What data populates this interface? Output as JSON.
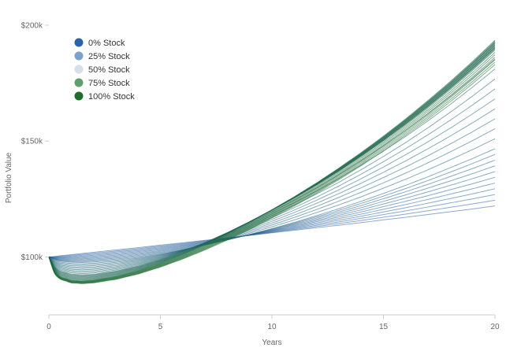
{
  "chart_data": {
    "type": "line",
    "title": "",
    "xlabel": "Years",
    "ylabel": "Portfolio Value",
    "xlim": [
      0,
      20
    ],
    "ylim": [
      75000,
      200000
    ],
    "x_ticks": [
      0,
      5,
      10,
      15,
      20
    ],
    "x_tick_labels": [
      "0",
      "5",
      "10",
      "15",
      "20"
    ],
    "y_ticks": [
      100000,
      150000,
      200000
    ],
    "y_tick_labels": [
      "$100k",
      "$150k",
      "$200k"
    ],
    "grid": false,
    "legend_position": "top-left",
    "x": [
      0,
      0.25,
      0.5,
      1,
      1.5,
      2,
      3,
      4,
      5,
      6,
      7,
      8,
      9,
      10,
      11,
      12,
      13,
      14,
      15,
      16,
      17,
      18,
      19,
      20
    ],
    "series": [
      {
        "name": "0% Stock",
        "color": "#2b63a8",
        "values": [
          100000,
          100200,
          100500,
          101000,
          101500,
          102000,
          103000,
          104000,
          105100,
          106100,
          107200,
          108200,
          109300,
          110400,
          111500,
          112600,
          113700,
          114800,
          116000,
          117100,
          118300,
          119500,
          120700,
          122000
        ]
      },
      {
        "name": "25% Stock",
        "color": "#7aa2cc",
        "values": [
          100000,
          98900,
          98200,
          97700,
          97600,
          97800,
          98600,
          99800,
          101300,
          103100,
          105100,
          107300,
          109700,
          112200,
          114900,
          117800,
          120800,
          124000,
          127400,
          130900,
          134600,
          138500,
          142500,
          146700
        ]
      },
      {
        "name": "50% Stock",
        "color": "#d6e0eb",
        "values": [
          100000,
          96000,
          94000,
          92600,
          92300,
          92500,
          93900,
          96100,
          98900,
          102300,
          106200,
          110500,
          115200,
          120200,
          125500,
          131100,
          137100,
          143500,
          150200,
          157300,
          164800,
          172700,
          181000,
          189700
        ]
      },
      {
        "name": "75% Stock",
        "color": "#5f9f6b",
        "values": [
          100000,
          94300,
          91500,
          89900,
          89600,
          90000,
          91600,
          94100,
          97300,
          101000,
          105300,
          110000,
          115000,
          120300,
          125900,
          131900,
          138300,
          145000,
          152100,
          159600,
          167500,
          175700,
          184400,
          193500
        ]
      },
      {
        "name": "100% Stock",
        "color": "#1e6d2a",
        "values": [
          100000,
          93000,
          90500,
          88800,
          88500,
          88800,
          90300,
          92600,
          95600,
          99100,
          103000,
          107300,
          111900,
          116800,
          122000,
          127500,
          133300,
          139400,
          145800,
          152600,
          159600,
          167000,
          174800,
          183000
        ]
      }
    ],
    "color_scale_start": "#2b63a8",
    "color_scale_end": "#1e6d2a",
    "fan_line_count": 40
  }
}
